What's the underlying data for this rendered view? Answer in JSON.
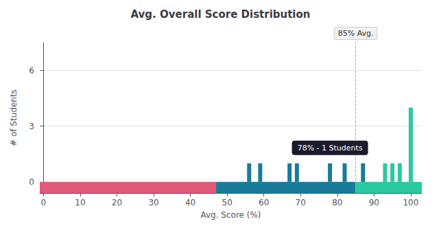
{
  "chart_data": {
    "type": "bar",
    "title": "Avg. Overall Score Distribution",
    "xlabel": "Avg. Score (%)",
    "ylabel": "# of Students",
    "x": [
      56,
      59,
      67,
      69,
      78,
      82,
      87,
      93,
      95,
      97,
      100
    ],
    "values": [
      1,
      1,
      1,
      1,
      1,
      1,
      1,
      1,
      1,
      1,
      4
    ],
    "colors": [
      "#1a7a9a",
      "#1a7a9a",
      "#1a7a9a",
      "#1a7a9a",
      "#1a7a9a",
      "#1a7a9a",
      "#1a7a9a",
      "#2ac9a0",
      "#2ac9a0",
      "#2ac9a0",
      "#2ac9a0"
    ],
    "xlim": [
      -1,
      103
    ],
    "xticks": [
      0,
      10,
      20,
      30,
      40,
      50,
      60,
      70,
      80,
      90,
      100
    ],
    "ylim": [
      -0.6,
      7.5
    ],
    "yticks": [
      0,
      3,
      6
    ],
    "grid": true,
    "bands": [
      {
        "xmin": -1,
        "xmax": 47,
        "color": "#e05a7a"
      },
      {
        "xmin": 47,
        "xmax": 85,
        "color": "#1a7a9a"
      },
      {
        "xmin": 85,
        "xmax": 103,
        "color": "#2ac9a0"
      }
    ],
    "avg_line": {
      "x": 85,
      "label": "85% Avg."
    },
    "annotations": [
      {
        "text": "78% - 1 Students",
        "x": 78,
        "y": 1
      }
    ]
  }
}
